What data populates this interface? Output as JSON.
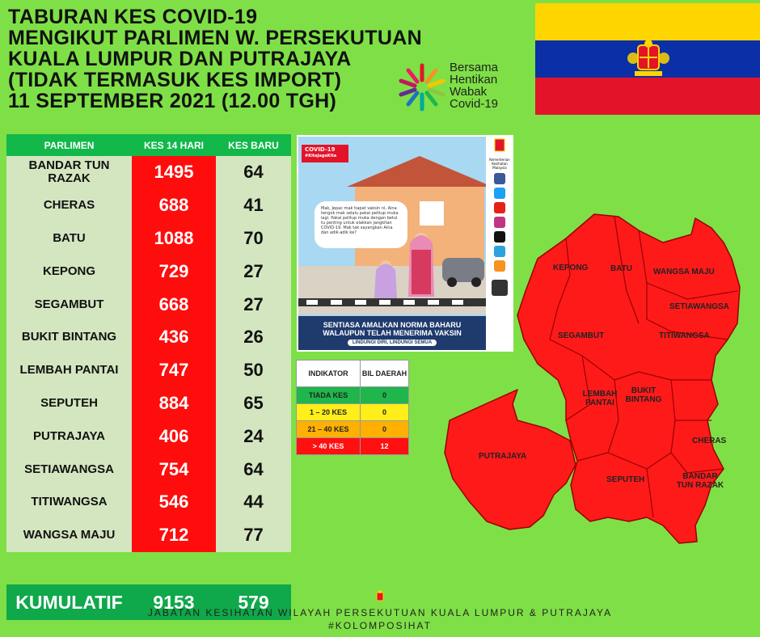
{
  "title": {
    "line1": "TABURAN KES COVID-19",
    "line2": "MENGIKUT PARLIMEN W. PERSEKUTUAN",
    "line3": "KUALA LUMPUR DAN PUTRAJAYA",
    "line4": "(TIDAK TERMASUK KES IMPORT)",
    "line5": "11 SEPTEMBER 2021 (12.00 TGH)"
  },
  "campaign": {
    "l1": "Bersama",
    "l2": "Hentikan",
    "l3": "Wabak",
    "l4": "Covid-19"
  },
  "flag": {
    "colors": [
      "#ffd500",
      "#0b2fa6",
      "#e3142a"
    ]
  },
  "table": {
    "headers": {
      "parlimen": "PARLIMEN",
      "kes14": "KES 14 HARI",
      "kesbaru": "KES BARU"
    },
    "rows": [
      {
        "parlimen": "BANDAR TUN RAZAK",
        "kes14": "1495",
        "kesbaru": "64"
      },
      {
        "parlimen": "CHERAS",
        "kes14": "688",
        "kesbaru": "41"
      },
      {
        "parlimen": "BATU",
        "kes14": "1088",
        "kesbaru": "70"
      },
      {
        "parlimen": "KEPONG",
        "kes14": "729",
        "kesbaru": "27"
      },
      {
        "parlimen": "SEGAMBUT",
        "kes14": "668",
        "kesbaru": "27"
      },
      {
        "parlimen": "BUKIT BINTANG",
        "kes14": "436",
        "kesbaru": "26"
      },
      {
        "parlimen": "LEMBAH PANTAI",
        "kes14": "747",
        "kesbaru": "50"
      },
      {
        "parlimen": "SEPUTEH",
        "kes14": "884",
        "kesbaru": "65"
      },
      {
        "parlimen": "PUTRAJAYA",
        "kes14": "406",
        "kesbaru": "24"
      },
      {
        "parlimen": "SETIAWANGSA",
        "kes14": "754",
        "kesbaru": "64"
      },
      {
        "parlimen": "TITIWANGSA",
        "kes14": "546",
        "kesbaru": "44"
      },
      {
        "parlimen": "WANGSA MAJU",
        "kes14": "712",
        "kesbaru": "77"
      }
    ],
    "total": {
      "label": "KUMULATIF",
      "kes14": "9153",
      "kesbaru": "579"
    }
  },
  "poster": {
    "ribbon": "COVID-19",
    "ribbon_tag": "#KitaJagaKita",
    "bubble": "Mak, Jepac mak tiapat vaksin ni, Aina tengok mak selalu pakai pelitup muka lagi. Pakai pelitup muka dengan betul tu penting untuk elakkan jangkitan COVID-19. Mak tak sayangkan Aina dan adik-adik ke?",
    "banner1": "SENTIASA AMALKAN NORMA BAHARU",
    "banner2": "WALAUPUN TELAH MENERIMA VAKSIN",
    "pill": "LINDUNGI DIRI, LINDUNGI SEMUA",
    "ministry": "Kementerian Kesihatan Malaysia"
  },
  "indicator": {
    "headers": {
      "indikator": "INDIKATOR",
      "bil": "BIL DAERAH"
    },
    "rows": [
      {
        "label": "TIADA KES",
        "value": "0"
      },
      {
        "label": "1 – 20 KES",
        "value": "0"
      },
      {
        "label": "21 – 40 KES",
        "value": "0"
      },
      {
        "label": "> 40 KES",
        "value": "12"
      }
    ]
  },
  "map": {
    "labels": {
      "kepong": "KEPONG",
      "batu": "BATU",
      "wangsa_maju": "WANGSA MAJU",
      "setiawangsa": "SETIAWANGSA",
      "segambut": "SEGAMBUT",
      "titiwangsa": "TITIWANGSA",
      "lembah_pantai": "LEMBAH PANTAI",
      "bukit_bintang": "BUKIT BINTANG",
      "cheras": "CHERAS",
      "putrajaya": "PUTRAJAYA",
      "seputeh": "SEPUTEH",
      "bandar_tun_razak": "BANDAR TUN RAZAK"
    },
    "fill": "#ff1a1a"
  },
  "footer": {
    "line1": "JABATAN KESIHATAN WILAYAH PERSEKUTUAN KUALA LUMPUR & PUTRAJAYA",
    "line2": "#KOLOMPOSIHAT"
  }
}
